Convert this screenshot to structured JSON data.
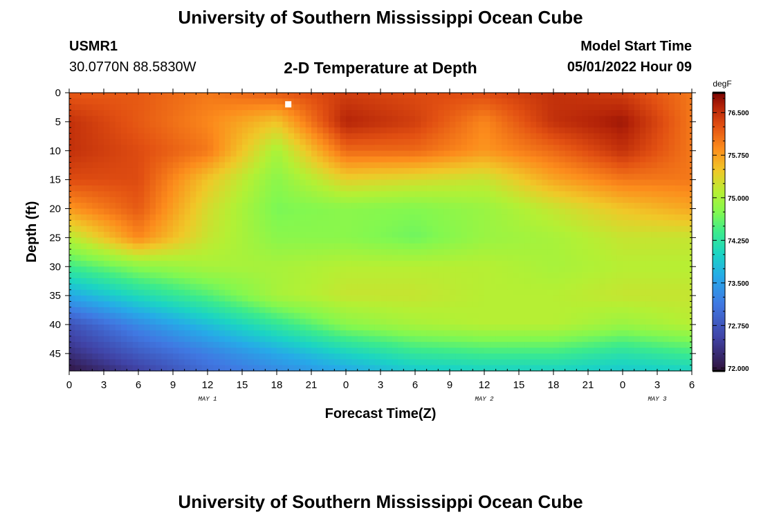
{
  "header": {
    "title": "University of Southern Mississippi Ocean Cube",
    "station": "USMR1",
    "coords": "30.0770N  88.5830W",
    "subtitle": "2-D Temperature at Depth",
    "model_label": "Model Start Time",
    "model_time": "05/01/2022 Hour 09"
  },
  "footer": {
    "title": "University of Southern Mississippi Ocean Cube"
  },
  "chart_data": {
    "type": "heatmap",
    "xlabel": "Forecast Time(Z)",
    "ylabel": "Depth (ft)",
    "x_hours_range": [
      0,
      54
    ],
    "x_tick_labels": [
      "0",
      "3",
      "6",
      "9",
      "12",
      "15",
      "18",
      "21",
      "0",
      "3",
      "6",
      "9",
      "12",
      "15",
      "18",
      "21",
      "0",
      "3",
      "6"
    ],
    "date_labels": [
      {
        "label": "MAY 1",
        "hour": 12
      },
      {
        "label": "MAY 2",
        "hour": 36
      },
      {
        "label": "MAY 3",
        "hour": 51
      }
    ],
    "y_range": [
      0,
      48
    ],
    "y_tick_labels": [
      "0",
      "5",
      "10",
      "15",
      "20",
      "25",
      "30",
      "35",
      "40",
      "45"
    ],
    "colorbar": {
      "unit": "degF",
      "range": [
        71.95,
        76.85
      ],
      "tick_labels": [
        "72.000",
        "72.750",
        "73.500",
        "74.250",
        "75.000",
        "75.750",
        "76.500"
      ]
    },
    "current_time_marker": {
      "hour": 19,
      "depth": 2
    },
    "temperature_field": {
      "hours": [
        0,
        6,
        12,
        18,
        24,
        30,
        36,
        42,
        48,
        54
      ],
      "depths_ft": [
        0,
        5,
        10,
        15,
        20,
        25,
        30,
        35,
        40,
        45,
        48
      ],
      "values_degF": [
        [
          76.2,
          76.2,
          76.0,
          76.2,
          76.4,
          76.3,
          76.3,
          76.5,
          76.4,
          76.0
        ],
        [
          76.5,
          76.2,
          75.9,
          75.5,
          76.6,
          76.4,
          75.9,
          76.5,
          76.7,
          76.0
        ],
        [
          76.5,
          76.3,
          76.0,
          75.0,
          76.1,
          76.1,
          75.8,
          76.1,
          76.5,
          76.0
        ],
        [
          76.3,
          76.3,
          75.5,
          74.8,
          75.4,
          75.3,
          75.2,
          75.7,
          76.0,
          76.0
        ],
        [
          75.8,
          76.2,
          75.3,
          74.7,
          74.8,
          74.75,
          74.9,
          75.2,
          75.5,
          75.7
        ],
        [
          75.1,
          75.9,
          75.2,
          74.8,
          74.8,
          74.65,
          74.9,
          75.0,
          75.2,
          75.2
        ],
        [
          74.4,
          74.8,
          75.0,
          75.0,
          75.1,
          75.1,
          75.1,
          75.0,
          75.1,
          75.1
        ],
        [
          73.6,
          74.1,
          74.5,
          75.0,
          75.2,
          75.2,
          75.1,
          75.1,
          75.2,
          75.2
        ],
        [
          72.7,
          73.3,
          73.8,
          74.3,
          74.8,
          75.0,
          75.1,
          75.1,
          74.9,
          75.1
        ],
        [
          72.3,
          72.8,
          73.2,
          73.6,
          74.0,
          74.3,
          74.4,
          74.4,
          74.2,
          74.4
        ],
        [
          72.0,
          72.5,
          73.0,
          73.3,
          73.6,
          73.9,
          74.0,
          74.0,
          73.9,
          74.0
        ]
      ]
    }
  }
}
